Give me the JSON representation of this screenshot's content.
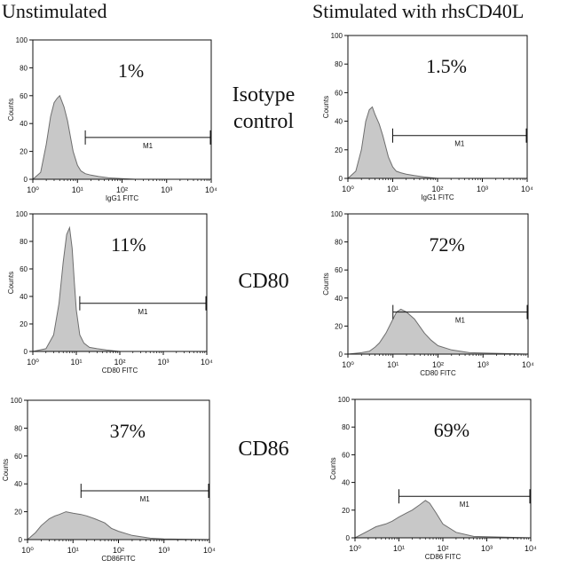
{
  "columns": [
    "Unstimulated",
    "Stimulated with rhsCD40L"
  ],
  "rows": [
    {
      "label_lines": [
        "Isotype",
        "control"
      ]
    },
    {
      "label_lines": [
        "CD80"
      ]
    },
    {
      "label_lines": [
        "CD86"
      ]
    }
  ],
  "colors": {
    "fill": "#c8c8c8",
    "stroke": "#6e6e6e",
    "axis": "#111111"
  },
  "chart_data": [
    {
      "type": "area",
      "ylabel": "Counts",
      "xlabel": "IgG1 FITC",
      "xscale": "log",
      "xlim": [
        1,
        10000
      ],
      "ylim": [
        0,
        100
      ],
      "yticks": [
        0,
        20,
        40,
        60,
        80,
        100
      ],
      "xticks": [
        "10⁰",
        "10¹",
        "10²",
        "10³",
        "10⁴"
      ],
      "percent_label": "1%",
      "gate": {
        "name": "M1",
        "start": 15,
        "end": 10000,
        "y": 30
      },
      "histogram": {
        "x": [
          1,
          1.5,
          2,
          2.5,
          3,
          3.5,
          4,
          5,
          6,
          7,
          8,
          10,
          12,
          15,
          20,
          30,
          50,
          100,
          200,
          10000
        ],
        "y": [
          0,
          5,
          25,
          45,
          55,
          58,
          60,
          52,
          42,
          30,
          20,
          10,
          6,
          4,
          3,
          2,
          1,
          0.5,
          0,
          0
        ]
      }
    },
    {
      "type": "area",
      "ylabel": "Counts",
      "xlabel": "IgG1 FITC",
      "xscale": "log",
      "xlim": [
        1,
        10000
      ],
      "ylim": [
        0,
        100
      ],
      "yticks": [
        0,
        20,
        40,
        60,
        80,
        100
      ],
      "xticks": [
        "10⁰",
        "10¹",
        "10²",
        "10³",
        "10⁴"
      ],
      "percent_label": "1.5%",
      "gate": {
        "name": "M1",
        "start": 10,
        "end": 10000,
        "y": 30
      },
      "histogram": {
        "x": [
          1,
          1.5,
          2,
          2.5,
          3,
          3.5,
          4,
          5,
          6,
          7,
          8,
          10,
          12,
          15,
          20,
          30,
          50,
          100,
          10000
        ],
        "y": [
          0,
          5,
          20,
          40,
          48,
          50,
          45,
          38,
          30,
          22,
          15,
          8,
          5,
          4,
          3,
          2,
          1,
          0,
          0
        ]
      }
    },
    {
      "type": "area",
      "ylabel": "Counts",
      "xlabel": "CD80 FITC",
      "xscale": "log",
      "xlim": [
        1,
        10000
      ],
      "ylim": [
        0,
        100
      ],
      "yticks": [
        0,
        20,
        40,
        60,
        80,
        100
      ],
      "xticks": [
        "10⁰",
        "10¹",
        "10²",
        "10³",
        "10⁴"
      ],
      "percent_label": "11%",
      "gate": {
        "name": "M1",
        "start": 12,
        "end": 10000,
        "y": 35
      },
      "histogram": {
        "x": [
          1,
          2,
          3,
          4,
          5,
          6,
          7,
          8,
          9,
          10,
          12,
          15,
          20,
          30,
          50,
          100,
          10000
        ],
        "y": [
          0,
          2,
          12,
          35,
          65,
          85,
          90,
          75,
          50,
          30,
          12,
          6,
          3,
          2,
          1,
          0,
          0
        ]
      }
    },
    {
      "type": "area",
      "ylabel": "Counts",
      "xlabel": "CD80 FITC",
      "xscale": "log",
      "xlim": [
        1,
        10000
      ],
      "ylim": [
        0,
        100
      ],
      "yticks": [
        0,
        20,
        40,
        60,
        80,
        100
      ],
      "xticks": [
        "10⁰",
        "10¹",
        "10²",
        "10³",
        "10⁴"
      ],
      "percent_label": "72%",
      "gate": {
        "name": "M1",
        "start": 10,
        "end": 10000,
        "y": 30
      },
      "histogram": {
        "x": [
          1,
          2,
          3,
          4,
          5,
          7,
          10,
          12,
          15,
          20,
          30,
          50,
          70,
          100,
          200,
          500,
          10000
        ],
        "y": [
          0,
          1,
          2,
          5,
          8,
          15,
          25,
          30,
          32,
          30,
          25,
          15,
          10,
          6,
          3,
          1,
          0
        ]
      }
    },
    {
      "type": "area",
      "ylabel": "Counts",
      "xlabel": "CD86FITC",
      "xscale": "log",
      "xlim": [
        1,
        10000
      ],
      "ylim": [
        0,
        100
      ],
      "yticks": [
        0,
        20,
        40,
        60,
        80,
        100
      ],
      "xticks": [
        "10⁰",
        "10¹",
        "10²",
        "10³",
        "10⁴"
      ],
      "percent_label": "37%",
      "gate": {
        "name": "M1",
        "start": 15,
        "end": 10000,
        "y": 35
      },
      "histogram": {
        "x": [
          1,
          1.5,
          2,
          3,
          4,
          5,
          7,
          10,
          15,
          20,
          30,
          50,
          70,
          100,
          200,
          500,
          1000,
          10000
        ],
        "y": [
          0,
          5,
          10,
          15,
          17,
          18,
          20,
          19,
          18,
          17,
          15,
          12,
          8,
          6,
          3,
          1,
          0.5,
          0
        ]
      }
    },
    {
      "type": "area",
      "ylabel": "Counts",
      "xlabel": "CD86 FITC",
      "xscale": "log",
      "xlim": [
        1,
        10000
      ],
      "ylim": [
        0,
        100
      ],
      "yticks": [
        0,
        20,
        40,
        60,
        80,
        100
      ],
      "xticks": [
        "10⁰",
        "10¹",
        "10²",
        "10³",
        "10⁴"
      ],
      "percent_label": "69%",
      "gate": {
        "name": "M1",
        "start": 10,
        "end": 10000,
        "y": 30
      },
      "histogram": {
        "x": [
          1,
          2,
          3,
          5,
          7,
          10,
          15,
          20,
          30,
          40,
          50,
          70,
          100,
          200,
          500,
          10000
        ],
        "y": [
          0,
          5,
          8,
          10,
          12,
          15,
          18,
          20,
          24,
          27,
          25,
          18,
          10,
          4,
          1,
          0
        ]
      }
    }
  ]
}
